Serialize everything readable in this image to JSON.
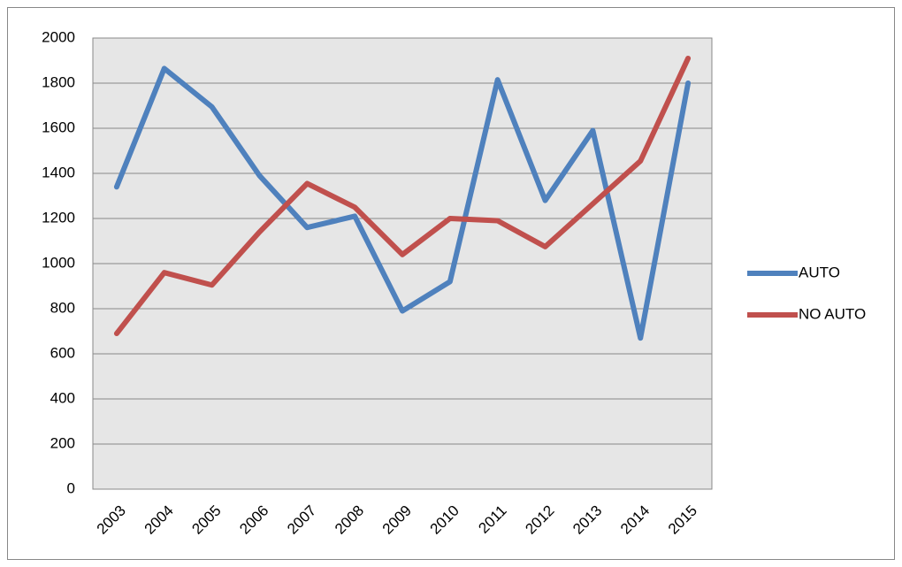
{
  "chart_data": {
    "type": "line",
    "categories": [
      "2003",
      "2004",
      "2005",
      "2006",
      "2007",
      "2008",
      "2009",
      "2010",
      "2011",
      "2012",
      "2013",
      "2014",
      "2015"
    ],
    "series": [
      {
        "name": "AUTO",
        "color": "#4f81bd",
        "values": [
          1340,
          1865,
          1695,
          1390,
          1160,
          1210,
          790,
          920,
          1815,
          1280,
          1590,
          670,
          1800
        ]
      },
      {
        "name": "NO AUTO",
        "color": "#c0504d",
        "values": [
          690,
          960,
          905,
          1140,
          1355,
          1250,
          1040,
          1200,
          1190,
          1075,
          1265,
          1455,
          1910
        ]
      }
    ],
    "ylim": [
      0,
      2000
    ],
    "yticks": [
      0,
      200,
      400,
      600,
      800,
      1000,
      1200,
      1400,
      1600,
      1800,
      2000
    ],
    "grid": true,
    "legend": "right"
  }
}
